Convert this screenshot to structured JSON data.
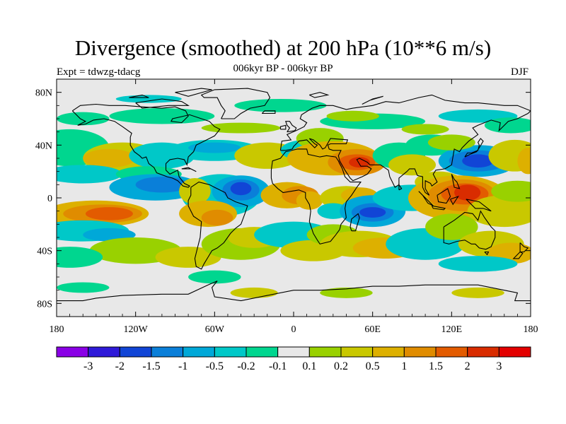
{
  "title": "Divergence (smoothed) at 200 hPa (10**6 m/s)",
  "subtitle": "006kyr BP - 006kyr BP",
  "expt_label": "Expt = tdwzg-tdacg",
  "season": "DJF",
  "map": {
    "projection": "cylindrical equidistant",
    "lon_range": [
      -180,
      180
    ],
    "lat_range": [
      -90,
      90
    ],
    "background": "#e8e8e8",
    "lat_ticks": [
      "80N",
      "40N",
      "0",
      "40S",
      "80S"
    ],
    "lon_ticks": [
      "180",
      "120W",
      "60W",
      "0",
      "60E",
      "120E",
      "180"
    ],
    "coastlines": true
  },
  "colorbar": {
    "labels": [
      "-3",
      "-2",
      "-1.5",
      "-1",
      "-0.5",
      "-0.2",
      "-0.1",
      "0.1",
      "0.2",
      "0.5",
      "1",
      "1.5",
      "2",
      "3"
    ],
    "colors": [
      "#8a00e6",
      "#2f1ad9",
      "#1145d6",
      "#0a7fd9",
      "#00a8d8",
      "#00c8c8",
      "#00d68f",
      "#e8e8e8",
      "#99d100",
      "#c9c800",
      "#ddb000",
      "#e08c00",
      "#e35b00",
      "#d92c00",
      "#e30000"
    ]
  },
  "chart_data": {
    "type": "heatmap",
    "title": "Divergence (smoothed) at 200 hPa (10**6 m/s)",
    "subtitle": "006kyr BP - 006kyr BP",
    "xlabel": "",
    "ylabel": "",
    "x_ticks": [
      "180",
      "120W",
      "60W",
      "0",
      "60E",
      "120E",
      "180"
    ],
    "y_ticks": [
      "80N",
      "40N",
      "0",
      "40S",
      "80S"
    ],
    "levels": [
      -3,
      -2,
      -1.5,
      -1,
      -0.5,
      -0.2,
      -0.1,
      0.1,
      0.2,
      0.5,
      1,
      1.5,
      2,
      3
    ],
    "notable_features": [
      {
        "lon": -140,
        "lat": -12,
        "value": 2
      },
      {
        "lon": -40,
        "lat": 7,
        "value": -2
      },
      {
        "lon": 60,
        "lat": -10,
        "value": -2
      },
      {
        "lon": 130,
        "lat": 3,
        "value": 3
      },
      {
        "lon": 140,
        "lat": 28,
        "value": -1.5
      },
      {
        "lon": 45,
        "lat": 26,
        "value": 2
      },
      {
        "lon": 5,
        "lat": 2,
        "value": 1.5
      }
    ]
  }
}
